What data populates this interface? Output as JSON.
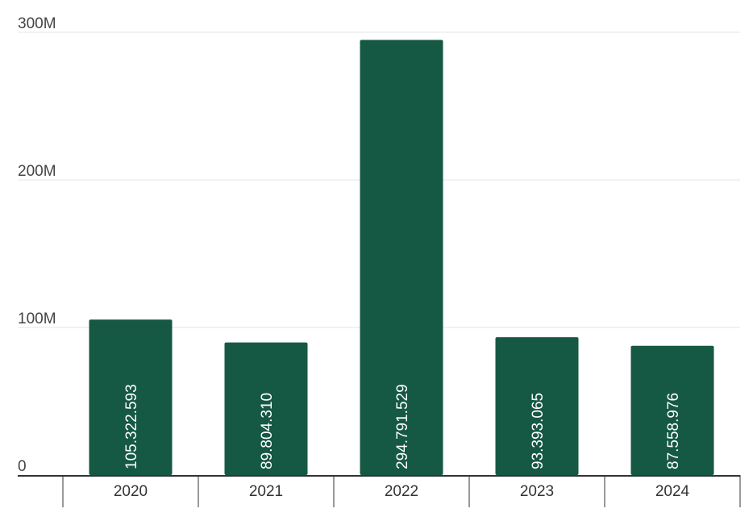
{
  "chart_data": {
    "type": "bar",
    "categories": [
      "2020",
      "2021",
      "2022",
      "2023",
      "2024"
    ],
    "values": [
      105322593,
      89804310,
      294791529,
      93393065,
      87558976
    ],
    "data_labels": [
      "105.322.593",
      "89.804.310",
      "294.791.529",
      "93.393.065",
      "87.558.976"
    ],
    "y_ticks": [
      {
        "value": 0,
        "label": "0"
      },
      {
        "value": 100000000,
        "label": "100M"
      },
      {
        "value": 200000000,
        "label": "200M"
      },
      {
        "value": 300000000,
        "label": "300M"
      }
    ],
    "ylim": [
      0,
      300000000
    ],
    "grid": true,
    "bar_color": "#155843",
    "grid_color": "#e6e6e6",
    "axis_color": "#333333"
  }
}
